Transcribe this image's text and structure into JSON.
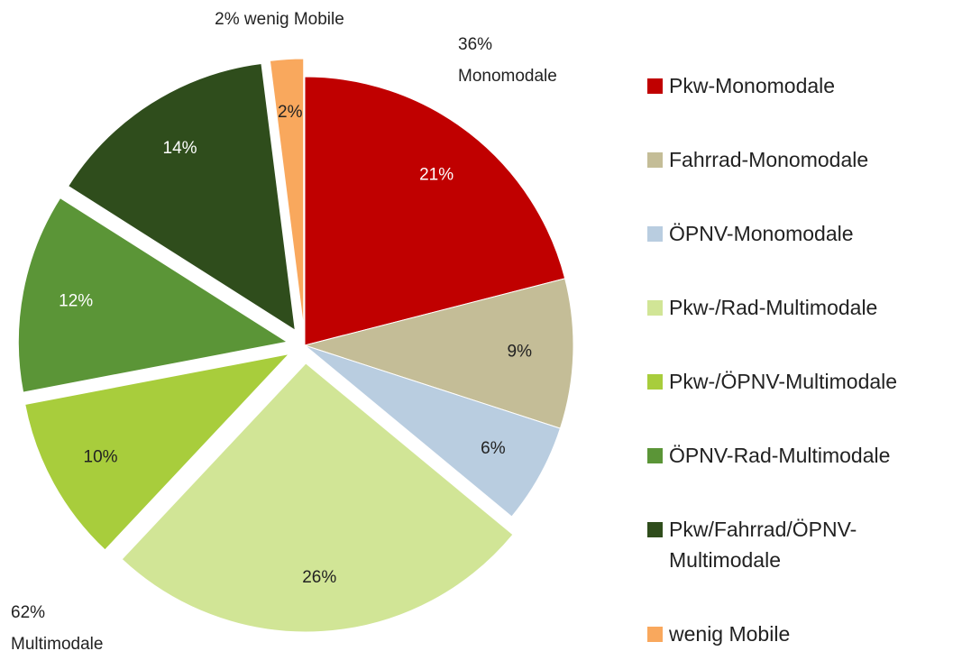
{
  "chart_data": {
    "type": "pie",
    "categories": [
      "Pkw-Monomodale",
      "Fahrrad-Monomodale",
      "ÖPNV-Monomodale",
      "Pkw-/Rad-Multimodale",
      "Pkw-/ÖPNV-Multimodale",
      "ÖPNV-Rad-Multimodale",
      "Pkw/Fahrrad/ÖPNV-Multimodale",
      "wenig Mobile"
    ],
    "values": [
      21,
      9,
      6,
      26,
      10,
      12,
      14,
      2
    ],
    "value_labels": [
      "21%",
      "9%",
      "6%",
      "26%",
      "10%",
      "12%",
      "14%",
      "2%"
    ],
    "colors": [
      "#c00000",
      "#c4bd97",
      "#b9cde0",
      "#d1e596",
      "#a8cd3c",
      "#5b9537",
      "#2f4d1c",
      "#f9a85d"
    ],
    "exploded": [
      false,
      false,
      false,
      true,
      true,
      true,
      true,
      true
    ],
    "legend": "right",
    "annotations": [
      {
        "lines": [
          "2% wenig Mobile"
        ]
      },
      {
        "lines": [
          "36%",
          "Monomodale"
        ]
      },
      {
        "lines": [
          "62%",
          "Multimodale"
        ]
      }
    ]
  }
}
